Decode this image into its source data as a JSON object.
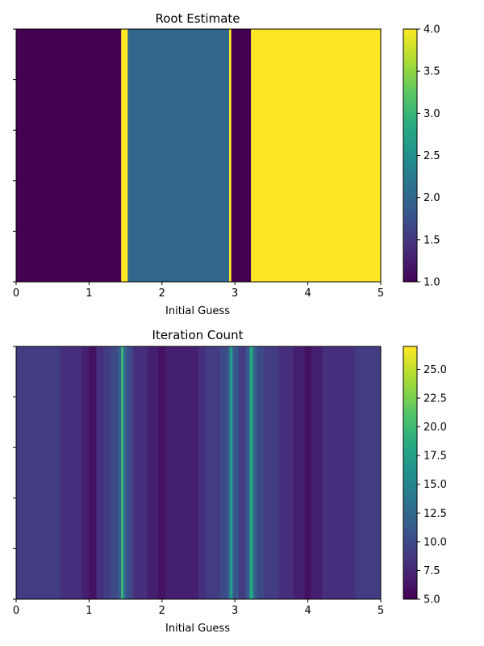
{
  "chart_data": [
    {
      "type": "heatmap",
      "title": "Root Estimate",
      "xlabel": "Initial Guess",
      "ylabel": "",
      "xlim": [
        0,
        5
      ],
      "x_ticks": [
        "0",
        "1",
        "2",
        "3",
        "4",
        "5"
      ],
      "colormap": "viridis",
      "colorbar": {
        "min": 1.0,
        "max": 4.0,
        "ticks": [
          "1.0",
          "1.5",
          "2.0",
          "2.5",
          "3.0",
          "3.5",
          "4.0"
        ]
      },
      "column_values": {
        "description_units": "value per x interval [start, end]",
        "segments": [
          {
            "start": 0.0,
            "end": 1.44,
            "value": 1.0
          },
          {
            "start": 1.44,
            "end": 1.53,
            "value": 4.0
          },
          {
            "start": 1.53,
            "end": 2.92,
            "value": 2.0
          },
          {
            "start": 2.92,
            "end": 2.95,
            "value": 4.0
          },
          {
            "start": 2.95,
            "end": 3.22,
            "value": 1.0
          },
          {
            "start": 3.22,
            "end": 5.0,
            "value": 4.0
          }
        ]
      }
    },
    {
      "type": "heatmap",
      "title": "Iteration Count",
      "xlabel": "Initial Guess",
      "ylabel": "",
      "xlim": [
        0,
        5
      ],
      "x_ticks": [
        "0",
        "1",
        "2",
        "3",
        "4",
        "5"
      ],
      "colormap": "viridis",
      "colorbar": {
        "min": 5.0,
        "max": 27.0,
        "ticks": [
          "5.0",
          "7.5",
          "10.0",
          "12.5",
          "15.0",
          "17.5",
          "20.0",
          "22.5",
          "25.0"
        ]
      },
      "column_values": {
        "segments": [
          {
            "start": 0.0,
            "end": 0.6,
            "value": 9
          },
          {
            "start": 0.6,
            "end": 0.9,
            "value": 8
          },
          {
            "start": 0.9,
            "end": 1.0,
            "value": 7
          },
          {
            "start": 1.0,
            "end": 1.1,
            "value": 6
          },
          {
            "start": 1.1,
            "end": 1.2,
            "value": 8
          },
          {
            "start": 1.2,
            "end": 1.3,
            "value": 9
          },
          {
            "start": 1.3,
            "end": 1.4,
            "value": 10
          },
          {
            "start": 1.4,
            "end": 1.44,
            "value": 12
          },
          {
            "start": 1.44,
            "end": 1.47,
            "value": 20
          },
          {
            "start": 1.47,
            "end": 1.5,
            "value": 13
          },
          {
            "start": 1.5,
            "end": 1.53,
            "value": 11
          },
          {
            "start": 1.53,
            "end": 1.6,
            "value": 10
          },
          {
            "start": 1.6,
            "end": 1.8,
            "value": 8
          },
          {
            "start": 1.8,
            "end": 1.95,
            "value": 7
          },
          {
            "start": 1.95,
            "end": 2.05,
            "value": 6
          },
          {
            "start": 2.05,
            "end": 2.5,
            "value": 7
          },
          {
            "start": 2.5,
            "end": 2.6,
            "value": 8
          },
          {
            "start": 2.6,
            "end": 2.8,
            "value": 9
          },
          {
            "start": 2.8,
            "end": 2.9,
            "value": 10
          },
          {
            "start": 2.9,
            "end": 2.93,
            "value": 12
          },
          {
            "start": 2.93,
            "end": 2.97,
            "value": 17
          },
          {
            "start": 2.97,
            "end": 3.05,
            "value": 11
          },
          {
            "start": 3.05,
            "end": 3.15,
            "value": 9
          },
          {
            "start": 3.15,
            "end": 3.2,
            "value": 11
          },
          {
            "start": 3.2,
            "end": 3.25,
            "value": 18
          },
          {
            "start": 3.25,
            "end": 3.3,
            "value": 12
          },
          {
            "start": 3.3,
            "end": 3.4,
            "value": 10
          },
          {
            "start": 3.4,
            "end": 3.6,
            "value": 9
          },
          {
            "start": 3.6,
            "end": 3.8,
            "value": 8
          },
          {
            "start": 3.8,
            "end": 3.95,
            "value": 7
          },
          {
            "start": 3.95,
            "end": 4.05,
            "value": 6
          },
          {
            "start": 4.05,
            "end": 4.2,
            "value": 7
          },
          {
            "start": 4.2,
            "end": 4.65,
            "value": 8
          },
          {
            "start": 4.65,
            "end": 5.0,
            "value": 9
          }
        ]
      }
    }
  ]
}
